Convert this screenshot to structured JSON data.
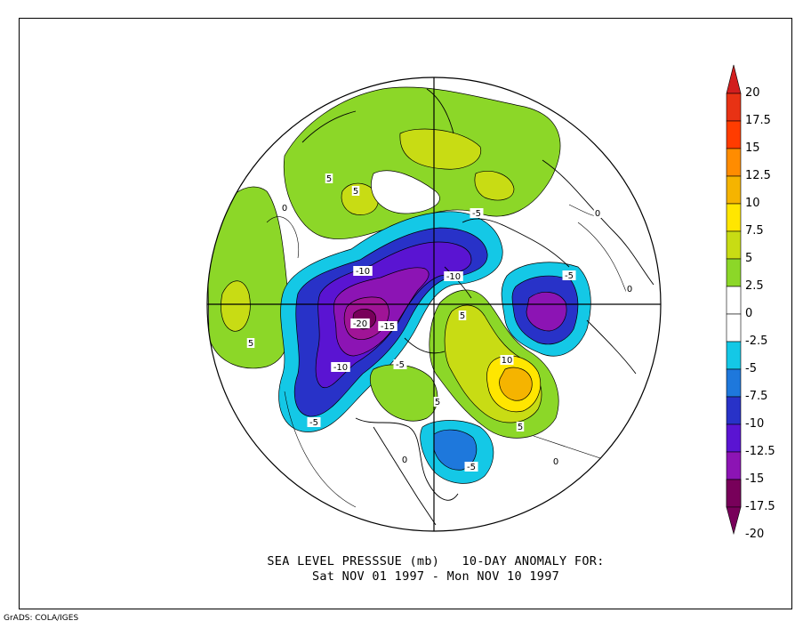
{
  "title": {
    "line1": "SEA LEVEL PRESSSUE (mb)   10-DAY ANOMALY FOR:",
    "line2": "Sat NOV 01 1997 - Mon NOV 10 1997"
  },
  "credit": "GrADS: COLA/IGES",
  "colorbar": {
    "labels": [
      "20",
      "17.5",
      "15",
      "12.5",
      "10",
      "7.5",
      "5",
      "2.5",
      "0",
      "-2.5",
      "-5",
      "-7.5",
      "-10",
      "-12.5",
      "-15",
      "-17.5",
      "-20"
    ],
    "colors": {
      "above_17_5": "#d21e1e",
      "15_17_5": "#ff3c00",
      "12_5_15": "#ff8c00",
      "10_12_5": "#f5b400",
      "7_5_10": "#ffe600",
      "5_7_5": "#c8dc14",
      "2_5_5": "#8cd728",
      "neg_2_5_2_5": "#ffffff",
      "neg_5_neg_2_5": "#14c8e6",
      "neg_7_5_neg_5": "#1e78dc",
      "neg_10_neg_7_5": "#2832c8",
      "neg_12_5_neg_10": "#5a14d2",
      "neg_15_neg_12_5": "#8c14b4",
      "neg_17_5_neg_15": "#a01496",
      "below_neg_17_5": "#78005a"
    }
  },
  "contour_labels": [
    {
      "text": "-20"
    },
    {
      "text": "-15"
    },
    {
      "text": "-10"
    },
    {
      "text": "-10"
    },
    {
      "text": "-10"
    },
    {
      "text": "-5"
    },
    {
      "text": "-5"
    },
    {
      "text": "-5"
    },
    {
      "text": "-5"
    },
    {
      "text": "-5"
    },
    {
      "text": "5"
    },
    {
      "text": "5"
    },
    {
      "text": "5"
    },
    {
      "text": "5"
    },
    {
      "text": "5"
    },
    {
      "text": "5"
    },
    {
      "text": "10"
    },
    {
      "text": "0"
    },
    {
      "text": "0"
    },
    {
      "text": "0"
    },
    {
      "text": "0"
    },
    {
      "text": "0"
    }
  ]
}
